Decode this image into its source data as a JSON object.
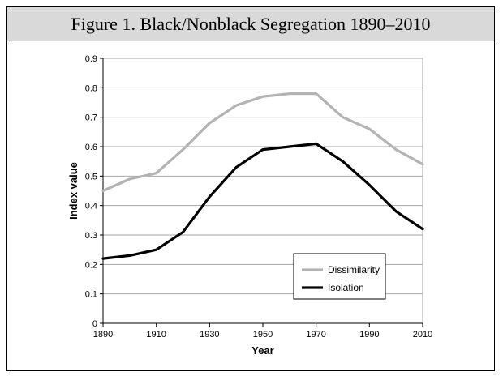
{
  "chart_data": {
    "type": "line",
    "title": "Figure 1. Black/Nonblack Segregation 1890–2010",
    "xlabel": "Year",
    "ylabel": "Index value",
    "xlim": [
      1890,
      2010
    ],
    "ylim": [
      0,
      0.9
    ],
    "x_ticks": [
      "1890",
      "1910",
      "1930",
      "1950",
      "1970",
      "1990",
      "2010"
    ],
    "y_ticks": [
      "0",
      "0.1",
      "0.2",
      "0.3",
      "0.4",
      "0.5",
      "0.6",
      "0.7",
      "0.8",
      "0.9"
    ],
    "x": [
      1890,
      1900,
      1910,
      1920,
      1930,
      1940,
      1950,
      1960,
      1970,
      1980,
      1990,
      2000,
      2010
    ],
    "grid": "horizontal",
    "legend_position": "lower-right",
    "series": [
      {
        "name": "Dissimilarity",
        "color": "#b3b3b3",
        "values": [
          0.45,
          0.49,
          0.51,
          0.59,
          0.68,
          0.74,
          0.77,
          0.78,
          0.78,
          0.7,
          0.66,
          0.59,
          0.54
        ]
      },
      {
        "name": "Isolation",
        "color": "#000000",
        "values": [
          0.22,
          0.23,
          0.25,
          0.31,
          0.43,
          0.53,
          0.59,
          0.6,
          0.61,
          0.55,
          0.47,
          0.38,
          0.32
        ]
      }
    ]
  }
}
